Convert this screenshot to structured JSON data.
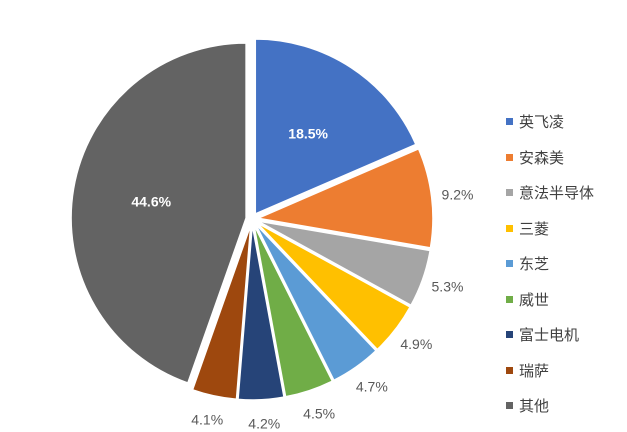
{
  "chart_data": {
    "type": "pie",
    "categories": [
      "英飞凌",
      "安森美",
      "意法半导体",
      "三菱",
      "东芝",
      "威世",
      "富士电机",
      "瑞萨",
      "其他"
    ],
    "values": [
      18.5,
      9.2,
      5.3,
      4.9,
      4.7,
      4.5,
      4.2,
      4.1,
      44.6
    ],
    "labels": [
      "18.5%",
      "9.2%",
      "5.3%",
      "4.9%",
      "4.7%",
      "4.5%",
      "4.2%",
      "4.1%",
      "44.6%"
    ],
    "colors": [
      "#4472C4",
      "#ED7D31",
      "#A5A5A5",
      "#FFC000",
      "#5B9BD5",
      "#70AD47",
      "#264478",
      "#9E480E",
      "#636363"
    ],
    "start_angle": "12 o'clock",
    "direction": "clockwise",
    "exploded": true,
    "legend_position": "right",
    "title": ""
  }
}
